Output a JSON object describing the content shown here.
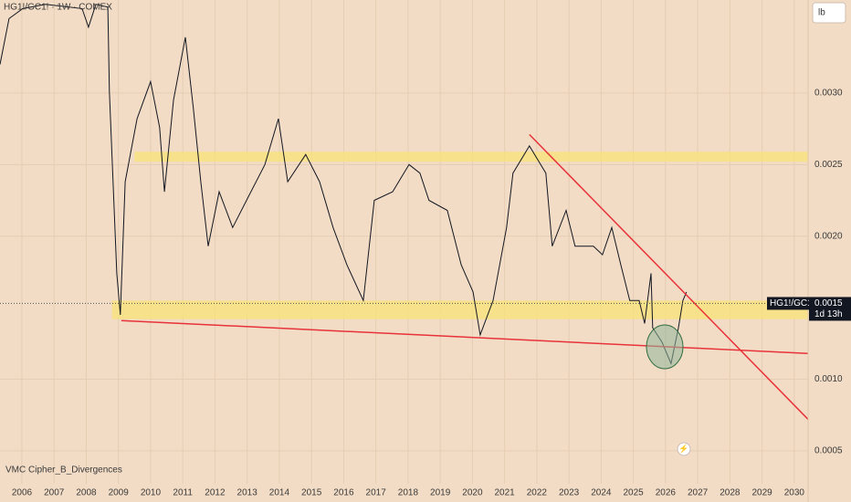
{
  "chart_data": {
    "type": "line",
    "title": "HG1!/GC1! · 1W · COMEX",
    "indicator": "VMC Cipher_B_Divergences",
    "unit_button": "lb",
    "countdown": "1d 13h",
    "x": [
      2005.32,
      2005.6,
      2006.03,
      2006.74,
      2007.87,
      2008.07,
      2008.3,
      2008.67,
      2008.72,
      2008.95,
      2009.06,
      2009.21,
      2009.58,
      2010.0,
      2010.28,
      2010.43,
      2010.71,
      2011.08,
      2011.33,
      2011.56,
      2011.79,
      2012.13,
      2012.55,
      2012.98,
      2013.55,
      2013.97,
      2014.26,
      2014.82,
      2015.25,
      2015.67,
      2016.1,
      2016.61,
      2016.95,
      2017.52,
      2018.03,
      2018.37,
      2018.65,
      2019.22,
      2019.65,
      2020.02,
      2020.24,
      2020.64,
      2021.06,
      2021.26,
      2021.77,
      2022.28,
      2022.48,
      2022.91,
      2023.19,
      2023.76,
      2024.04,
      2024.33,
      2024.61,
      2024.89,
      2025.18,
      2025.35,
      2025.55,
      2025.6,
      2025.89,
      2026.17,
      2026.4,
      2026.54,
      2026.65
    ],
    "series": [
      {
        "name": "HG1!/GC1!",
        "color": "#131722",
        "values": [
          0.0032,
          0.00352,
          0.00359,
          0.00362,
          0.00359,
          0.00346,
          0.00362,
          0.0036,
          0.00301,
          0.00174,
          0.00145,
          0.00238,
          0.00282,
          0.00308,
          0.00276,
          0.00231,
          0.00295,
          0.00339,
          0.00289,
          0.00238,
          0.00193,
          0.00231,
          0.00206,
          0.00225,
          0.0025,
          0.00282,
          0.00238,
          0.00257,
          0.00238,
          0.00206,
          0.0018,
          0.00155,
          0.00225,
          0.00231,
          0.0025,
          0.00244,
          0.00225,
          0.00218,
          0.0018,
          0.00161,
          0.00131,
          0.00155,
          0.00206,
          0.00244,
          0.00263,
          0.00244,
          0.00193,
          0.00218,
          0.00193,
          0.00193,
          0.00187,
          0.00206,
          0.0018,
          0.00155,
          0.00155,
          0.00139,
          0.00174,
          0.00136,
          0.00126,
          0.00111,
          0.00136,
          0.00155,
          0.00161
        ]
      }
    ],
    "xlim": [
      2005.32,
      2030.43
    ],
    "xticks": [
      2006,
      2007,
      2008,
      2009,
      2010,
      2011,
      2012,
      2013,
      2014,
      2015,
      2016,
      2017,
      2018,
      2019,
      2020,
      2021,
      2022,
      2023,
      2024,
      2025,
      2026,
      2027,
      2028,
      2029,
      2030
    ],
    "ylim": [
      0.00027,
      0.00365
    ],
    "yticks": [
      {
        "value": 0.0005,
        "label": "0.0005"
      },
      {
        "value": 0.001,
        "label": "0.0010"
      },
      {
        "value": 0.002,
        "label": "0.0020"
      },
      {
        "value": 0.0025,
        "label": "0.0025"
      },
      {
        "value": 0.003,
        "label": "0.0030"
      }
    ],
    "grid": true,
    "last_price": {
      "value": 0.00153,
      "label": "0.0015"
    },
    "zones": [
      {
        "from": 0.00252,
        "to": 0.00259,
        "x": [
          2009.5,
          2030.43
        ],
        "color": "#f7e27c"
      },
      {
        "from": 0.00142,
        "to": 0.00155,
        "x": [
          2008.8,
          2030.43
        ],
        "color": "#f7e27c"
      }
    ],
    "trendlines": [
      {
        "x": [
          2009.09,
          2030.43
        ],
        "y": [
          0.00141,
          0.00118
        ],
        "color": "#e8323a"
      },
      {
        "x": [
          2021.77,
          2030.43
        ],
        "y": [
          0.00271,
          0.00072
        ],
        "color": "#e8323a"
      }
    ]
  }
}
